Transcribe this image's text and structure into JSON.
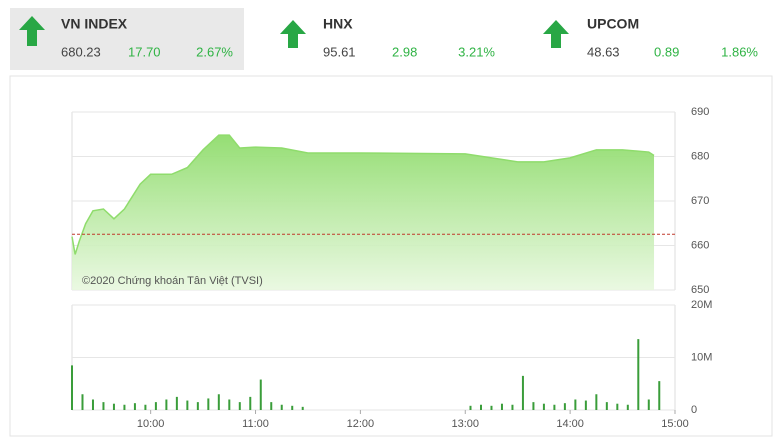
{
  "tickers": [
    {
      "name": "VN INDEX",
      "value": "680.23",
      "change": "17.70",
      "percent": "2.67%"
    },
    {
      "name": "HNX",
      "value": "95.61",
      "change": "2.98",
      "percent": "3.21%"
    },
    {
      "name": "UPCOM",
      "value": "48.63",
      "change": "0.89",
      "percent": "1.86%"
    }
  ],
  "chart_data": [
    {
      "type": "area",
      "annotation": "©2020 Chứng khoán Tân Việt (TVSI)",
      "color": "#8fdc6c",
      "reference_value": 662.53,
      "reference_color": "#c0392b",
      "x": [
        9.25,
        9.28,
        9.32,
        9.38,
        9.45,
        9.55,
        9.65,
        9.75,
        9.9,
        10.0,
        10.2,
        10.35,
        10.5,
        10.65,
        10.75,
        10.85,
        11.0,
        11.25,
        11.5,
        12.0,
        13.0,
        13.5,
        13.75,
        14.0,
        14.25,
        14.5,
        14.75,
        14.8
      ],
      "values": [
        662,
        658,
        661,
        664.9,
        667.8,
        668.2,
        666,
        668.2,
        673.8,
        676,
        676,
        677.5,
        681.5,
        684.8,
        684.8,
        681.9,
        682.1,
        681.9,
        680.8,
        680.8,
        680.6,
        678.8,
        678.8,
        679.7,
        681.5,
        681.5,
        681,
        680.23
      ],
      "xlim": [
        9.25,
        15
      ],
      "ylim": [
        650,
        690
      ],
      "yticks": [
        650,
        660,
        670,
        680,
        690
      ],
      "grid": true
    },
    {
      "type": "bar",
      "color": "#3a9d3a",
      "x": [
        9.25,
        9.35,
        9.45,
        9.55,
        9.65,
        9.75,
        9.85,
        9.95,
        10.05,
        10.15,
        10.25,
        10.35,
        10.45,
        10.55,
        10.65,
        10.75,
        10.85,
        10.95,
        11.05,
        11.15,
        11.25,
        11.35,
        11.45,
        13.05,
        13.15,
        13.25,
        13.35,
        13.45,
        13.55,
        13.65,
        13.75,
        13.85,
        13.95,
        14.05,
        14.15,
        14.25,
        14.35,
        14.45,
        14.55,
        14.65,
        14.75,
        14.85
      ],
      "values": [
        8.5,
        3.0,
        2.0,
        1.5,
        1.2,
        1.0,
        1.3,
        1.0,
        1.5,
        2.0,
        2.5,
        1.8,
        1.5,
        2.2,
        3.0,
        2.0,
        1.5,
        2.5,
        5.8,
        1.5,
        1.0,
        0.8,
        0.6,
        0.8,
        1.0,
        0.8,
        1.2,
        1.0,
        6.5,
        1.5,
        1.2,
        1.0,
        1.3,
        2.0,
        1.8,
        3.0,
        1.5,
        1.2,
        1.0,
        13.5,
        2.0,
        5.5
      ],
      "xlim": [
        9.25,
        15
      ],
      "ylim": [
        0,
        20
      ],
      "yticks": [
        0,
        {
          "value": 10,
          "label": "10M"
        },
        {
          "value": 20,
          "label": "20M"
        }
      ],
      "xticks": [
        {
          "value": 10,
          "label": "10:00"
        },
        {
          "value": 11,
          "label": "11:00"
        },
        {
          "value": 12,
          "label": "12:00"
        },
        {
          "value": 13,
          "label": "13:00"
        },
        {
          "value": 14,
          "label": "14:00"
        },
        {
          "value": 15,
          "label": "15:00"
        }
      ],
      "grid": true
    }
  ]
}
